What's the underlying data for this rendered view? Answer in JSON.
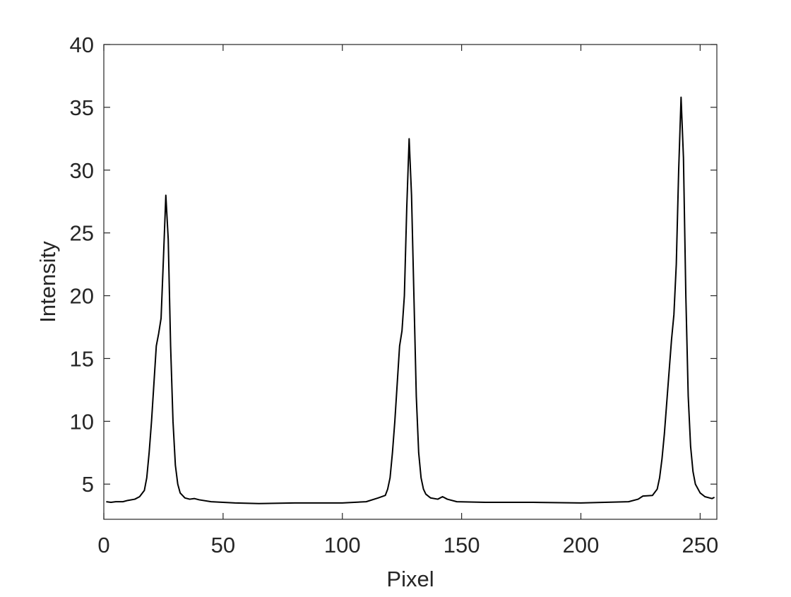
{
  "chart_data": {
    "type": "line",
    "x_label": "Pixel",
    "y_label": "Intensity",
    "x": [
      1,
      3,
      5,
      8,
      10,
      13,
      15,
      17,
      18,
      19,
      20,
      21,
      22,
      23,
      24,
      25,
      26,
      27,
      28,
      29,
      30,
      31,
      32,
      34,
      36,
      38,
      40,
      45,
      55,
      65,
      80,
      100,
      110,
      115,
      118,
      119,
      120,
      121,
      122,
      123,
      124,
      125,
      126,
      127,
      128,
      129,
      130,
      131,
      132,
      133,
      134,
      135,
      137,
      140,
      142,
      144,
      148,
      160,
      180,
      200,
      220,
      224,
      226,
      230,
      232,
      233,
      234,
      235,
      236,
      237,
      238,
      239,
      240,
      241,
      242,
      243,
      244,
      245,
      246,
      247,
      248,
      250,
      252,
      254,
      255,
      256
    ],
    "values": [
      3.6,
      3.55,
      3.6,
      3.6,
      3.7,
      3.8,
      4.0,
      4.5,
      5.5,
      7.5,
      10,
      13,
      16,
      17,
      18.2,
      23,
      28,
      24.5,
      16,
      10,
      6.5,
      5,
      4.3,
      3.9,
      3.8,
      3.85,
      3.75,
      3.6,
      3.5,
      3.45,
      3.5,
      3.5,
      3.6,
      3.9,
      4.1,
      4.6,
      5.5,
      7.5,
      10,
      13,
      16,
      17.2,
      20,
      27,
      32.5,
      28,
      20,
      12,
      7.5,
      5.5,
      4.6,
      4.2,
      3.9,
      3.8,
      4.0,
      3.8,
      3.6,
      3.55,
      3.55,
      3.5,
      3.6,
      3.8,
      4.05,
      4.1,
      4.6,
      5.5,
      7,
      9,
      11.5,
      14,
      16.5,
      18.5,
      22.5,
      30,
      35.8,
      31,
      20,
      12,
      8,
      6,
      5,
      4.3,
      4.0,
      3.9,
      3.85,
      3.95
    ],
    "color": "#000000",
    "xlim": [
      0,
      257
    ],
    "xticks": [
      0,
      50,
      100,
      150,
      200,
      250
    ],
    "ylim": [
      2.2,
      40
    ],
    "yticks": [
      5,
      10,
      15,
      20,
      25,
      30,
      35,
      40
    ]
  }
}
